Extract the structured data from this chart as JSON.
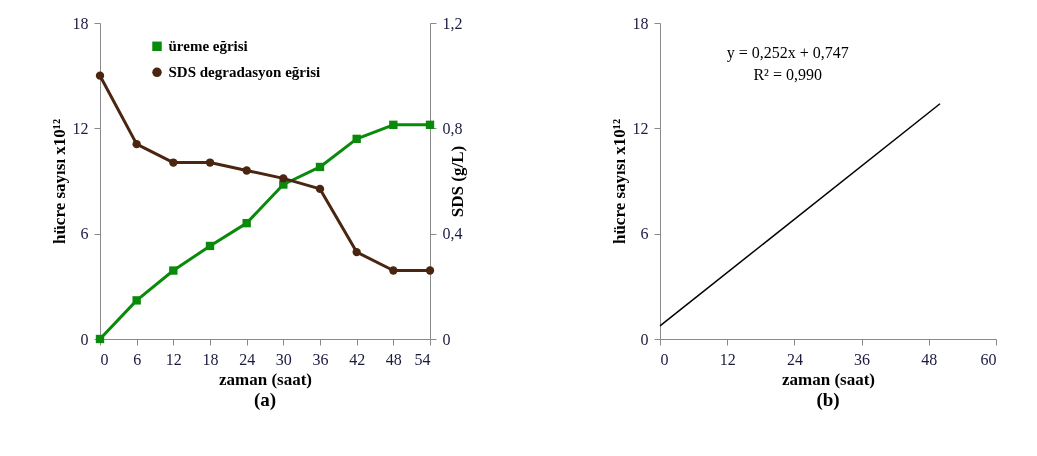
{
  "chart_data": [
    {
      "type": "line",
      "xlabel": "zaman (saat)",
      "ylabel": "hücre sayısı x10¹²",
      "y2label": "SDS (g/L)",
      "annotations": [
        "(a)"
      ],
      "x": [
        0,
        6,
        12,
        18,
        24,
        30,
        36,
        42,
        48,
        54
      ],
      "xlim": [
        0,
        54
      ],
      "xticks": [
        0,
        6,
        12,
        18,
        24,
        30,
        36,
        42,
        48,
        54
      ],
      "ylim": [
        0,
        18
      ],
      "yticks": [
        0,
        6,
        12,
        18
      ],
      "y2lim": [
        0,
        1.2
      ],
      "y2ticks": [
        0,
        {
          "value": 0.4,
          "label": "0,4"
        },
        {
          "value": 0.8,
          "label": "0,8"
        },
        {
          "value": 1.2,
          "label": "1,2"
        }
      ],
      "grid": false,
      "legend": "top",
      "line_style": "solid",
      "series": [
        {
          "name": "üreme eğrisi",
          "color": "#0a8a0a",
          "marker": "square",
          "values": [
            0,
            2.2,
            3.9,
            5.3,
            6.6,
            8.8,
            9.8,
            11.4,
            12.2,
            12.2
          ]
        },
        {
          "name": "SDS  degradasyon eğrisi",
          "color": "#4a2510",
          "marker": "circle",
          "axis": "y2",
          "values": [
            1.0,
            0.74,
            0.67,
            0.67,
            0.64,
            0.61,
            0.57,
            0.33,
            0.26,
            0.26
          ]
        }
      ]
    },
    {
      "type": "line",
      "xlabel": "zaman (saat)",
      "ylabel": "hücre sayısı x10¹²",
      "annotations": [
        "y = 0,252x + 0,747",
        "R² = 0,990",
        "(b)"
      ],
      "xlim": [
        0,
        60
      ],
      "xticks": [
        0,
        12,
        24,
        36,
        48,
        60
      ],
      "ylim": [
        0,
        18
      ],
      "yticks": [
        0,
        6,
        12,
        18
      ],
      "grid": false,
      "legend": false,
      "line_style": "solid",
      "marker": "none",
      "series": [
        {
          "color": "#000000",
          "x": [
            0,
            50
          ],
          "values": [
            0.75,
            13.4
          ]
        }
      ]
    }
  ]
}
